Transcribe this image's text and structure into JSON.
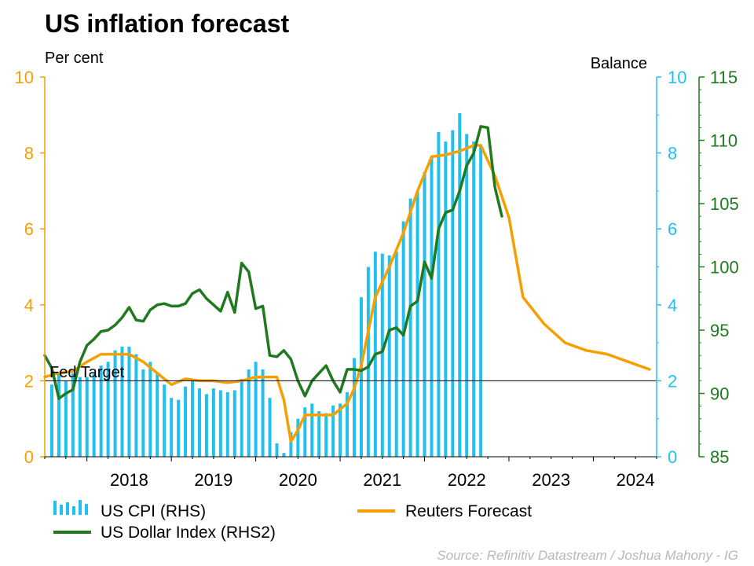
{
  "chart_data": {
    "type": "bar+line",
    "title": "US inflation forecast",
    "left_axis_label": "Per cent",
    "right_axis_label": "Balance",
    "source": "Source: Refinitiv Datastream / Joshua Mahony - IG",
    "annotation": {
      "text": "Fed Target",
      "value": 2
    },
    "grid": false,
    "legend_placement": "bottom",
    "axes": {
      "left": {
        "ylim": [
          0,
          10
        ],
        "ticks": [
          0,
          2,
          4,
          6,
          8,
          10
        ],
        "color": "#f5a000"
      },
      "rhs": {
        "ylim": [
          0,
          10
        ],
        "ticks": [
          0,
          2,
          4,
          6,
          8,
          10
        ],
        "color": "#22c0f0"
      },
      "rhs2": {
        "ylim": [
          85,
          115
        ],
        "ticks": [
          85,
          90,
          95,
          100,
          105,
          110,
          115
        ],
        "color": "#1f7a1f"
      },
      "x": {
        "range": [
          "2017-07",
          "2024-10"
        ],
        "tick_labels": [
          "2018",
          "2019",
          "2020",
          "2021",
          "2022",
          "2023",
          "2024"
        ]
      }
    },
    "series": [
      {
        "name": "US CPI (RHS)",
        "type": "bar",
        "axis": "rhs",
        "color": "#22c0f0",
        "x": [
          "2017-08",
          "2017-09",
          "2017-10",
          "2017-11",
          "2017-12",
          "2018-01",
          "2018-02",
          "2018-03",
          "2018-04",
          "2018-05",
          "2018-06",
          "2018-07",
          "2018-08",
          "2018-09",
          "2018-10",
          "2018-11",
          "2018-12",
          "2019-01",
          "2019-02",
          "2019-03",
          "2019-04",
          "2019-05",
          "2019-06",
          "2019-07",
          "2019-08",
          "2019-09",
          "2019-10",
          "2019-11",
          "2019-12",
          "2020-01",
          "2020-02",
          "2020-03",
          "2020-04",
          "2020-05",
          "2020-06",
          "2020-07",
          "2020-08",
          "2020-09",
          "2020-10",
          "2020-11",
          "2020-12",
          "2021-01",
          "2021-02",
          "2021-03",
          "2021-04",
          "2021-05",
          "2021-06",
          "2021-07",
          "2021-08",
          "2021-09",
          "2021-10",
          "2021-11",
          "2021-12",
          "2022-01",
          "2022-02",
          "2022-03",
          "2022-04",
          "2022-05",
          "2022-06",
          "2022-07",
          "2022-08",
          "2022-09"
        ],
        "values": [
          1.9,
          2.2,
          2.0,
          2.2,
          2.1,
          2.1,
          2.2,
          2.4,
          2.5,
          2.8,
          2.9,
          2.9,
          2.7,
          2.3,
          2.5,
          2.2,
          1.9,
          1.55,
          1.5,
          1.85,
          2.0,
          1.8,
          1.65,
          1.8,
          1.75,
          1.7,
          1.75,
          2.05,
          2.3,
          2.5,
          2.3,
          1.55,
          0.35,
          0.1,
          0.65,
          1.0,
          1.3,
          1.4,
          1.2,
          1.15,
          1.35,
          1.4,
          1.7,
          2.6,
          4.2,
          5.0,
          5.4,
          5.35,
          5.3,
          5.4,
          6.2,
          6.8,
          7.0,
          7.5,
          7.9,
          8.55,
          8.3,
          8.6,
          9.05,
          8.5,
          8.3,
          8.2
        ]
      },
      {
        "name": "Reuters Forecast",
        "type": "line",
        "axis": "left",
        "color": "#f5a000",
        "x": [
          "2017-07",
          "2017-09",
          "2017-11",
          "2018-01",
          "2018-03",
          "2018-05",
          "2018-07",
          "2018-09",
          "2018-11",
          "2019-01",
          "2019-03",
          "2019-05",
          "2019-07",
          "2019-09",
          "2019-11",
          "2020-01",
          "2020-02",
          "2020-04",
          "2020-05",
          "2020-06",
          "2020-07",
          "2020-08",
          "2020-10",
          "2020-12",
          "2021-02",
          "2021-03",
          "2021-04",
          "2021-06",
          "2021-08",
          "2021-10",
          "2021-12",
          "2022-02",
          "2022-04",
          "2022-06",
          "2022-08",
          "2022-09",
          "2022-11",
          "2023-01",
          "2023-03",
          "2023-06",
          "2023-09",
          "2023-12",
          "2024-03",
          "2024-06",
          "2024-09"
        ],
        "values": [
          2.1,
          2.2,
          2.25,
          2.5,
          2.7,
          2.7,
          2.7,
          2.5,
          2.2,
          1.9,
          2.05,
          2.0,
          2.0,
          1.95,
          2.0,
          2.1,
          2.1,
          2.1,
          1.5,
          0.4,
          0.7,
          1.1,
          1.1,
          1.1,
          1.4,
          1.8,
          2.4,
          4.2,
          5.0,
          5.9,
          7.0,
          7.9,
          7.95,
          8.05,
          8.2,
          8.2,
          7.4,
          6.3,
          4.2,
          3.5,
          3.0,
          2.8,
          2.7,
          2.5,
          2.3
        ]
      },
      {
        "name": "US Dollar Index (RHS2)",
        "type": "line",
        "axis": "rhs2",
        "color": "#1f7a1f",
        "x": [
          "2017-07",
          "2017-08",
          "2017-09",
          "2017-10",
          "2017-11",
          "2017-12",
          "2018-01",
          "2018-02",
          "2018-03",
          "2018-04",
          "2018-05",
          "2018-06",
          "2018-07",
          "2018-08",
          "2018-09",
          "2018-10",
          "2018-11",
          "2018-12",
          "2019-01",
          "2019-02",
          "2019-03",
          "2019-04",
          "2019-05",
          "2019-06",
          "2019-07",
          "2019-08",
          "2019-09",
          "2019-10",
          "2019-11",
          "2019-12",
          "2020-01",
          "2020-02",
          "2020-03",
          "2020-04",
          "2020-05",
          "2020-06",
          "2020-07",
          "2020-08",
          "2020-09",
          "2020-10",
          "2020-11",
          "2020-12",
          "2021-01",
          "2021-02",
          "2021-03",
          "2021-04",
          "2021-05",
          "2021-06",
          "2021-07",
          "2021-08",
          "2021-09",
          "2021-10",
          "2021-11",
          "2021-12",
          "2022-01",
          "2022-02",
          "2022-03",
          "2022-04",
          "2022-05",
          "2022-06",
          "2022-07",
          "2022-08",
          "2022-09",
          "2022-10",
          "2022-11",
          "2022-12"
        ],
        "values": [
          93.0,
          92.0,
          89.6,
          90.0,
          90.3,
          92.5,
          93.8,
          94.3,
          94.9,
          95.0,
          95.4,
          96.0,
          96.8,
          95.8,
          95.7,
          96.6,
          97.0,
          97.1,
          96.9,
          96.9,
          97.1,
          97.9,
          98.2,
          97.5,
          97.0,
          96.5,
          98.0,
          96.4,
          100.3,
          99.6,
          96.7,
          96.9,
          93.0,
          92.9,
          93.4,
          92.7,
          91.0,
          89.8,
          91.0,
          91.6,
          92.2,
          91.0,
          90.1,
          91.9,
          91.9,
          91.8,
          92.1,
          93.1,
          93.3,
          95.0,
          95.2,
          94.6,
          96.9,
          97.3,
          100.4,
          99.1,
          103.0,
          104.3,
          104.5,
          106.0,
          108.0,
          109.0,
          111.1,
          111.0,
          106.3,
          104.0
        ]
      }
    ]
  },
  "legend": {
    "items": [
      {
        "label": "US CPI (RHS)",
        "style": "bars"
      },
      {
        "label": "Reuters Forecast",
        "style": "line"
      },
      {
        "label": "US Dollar Index (RHS2)",
        "style": "line"
      }
    ]
  }
}
